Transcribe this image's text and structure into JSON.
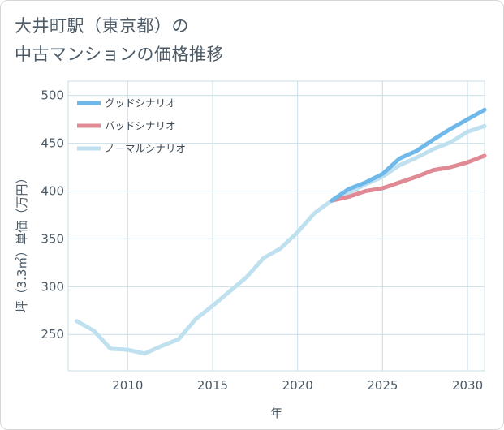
{
  "title": {
    "line1": "大井町駅（東京都）の",
    "line2": "中古マンションの価格推移"
  },
  "colors": {
    "good": "#6fb8ea",
    "bad": "#df8a94",
    "normal": "#bfe0ef",
    "grid": "#c9dfe8",
    "axis_text": "#4b5a66"
  },
  "chart_data": {
    "type": "line",
    "xlabel": "年",
    "ylabel": "坪（3.3㎡）単価（万円）",
    "xlim": [
      2006.5,
      2031
    ],
    "ylim": [
      212,
      515
    ],
    "xticks": [
      2010,
      2015,
      2020,
      2025,
      2030
    ],
    "yticks": [
      250,
      300,
      350,
      400,
      450,
      500
    ],
    "xtick_labels": [
      "2010",
      "2015",
      "2020",
      "2025",
      "2030"
    ],
    "ytick_labels": [
      "250",
      "300",
      "350",
      "400",
      "450",
      "500"
    ],
    "grid": true,
    "legend_position": "top-left",
    "series": [
      {
        "key": "good",
        "name": "グッドシナリオ",
        "x": [
          2022,
          2023,
          2024,
          2025,
          2026,
          2027,
          2028,
          2029,
          2030,
          2031
        ],
        "y": [
          390,
          402,
          409,
          418,
          434,
          442,
          454,
          465,
          475,
          485
        ]
      },
      {
        "key": "bad",
        "name": "バッドシナリオ",
        "x": [
          2022,
          2023,
          2024,
          2025,
          2026,
          2027,
          2028,
          2029,
          2030,
          2031
        ],
        "y": [
          390,
          394,
          400,
          403,
          409,
          415,
          422,
          425,
          430,
          437
        ]
      },
      {
        "key": "normal",
        "name": "ノーマルシナリオ",
        "x": [
          2007,
          2008,
          2009,
          2010,
          2011,
          2012,
          2013,
          2014,
          2015,
          2016,
          2017,
          2018,
          2019,
          2020,
          2021,
          2022,
          2023,
          2024,
          2025,
          2026,
          2027,
          2028,
          2029,
          2030,
          2031
        ],
        "y": [
          264,
          254,
          235,
          234,
          230,
          238,
          245,
          266,
          280,
          295,
          310,
          330,
          340,
          357,
          377,
          390,
          398,
          407,
          415,
          427,
          435,
          444,
          451,
          462,
          468
        ]
      }
    ]
  }
}
